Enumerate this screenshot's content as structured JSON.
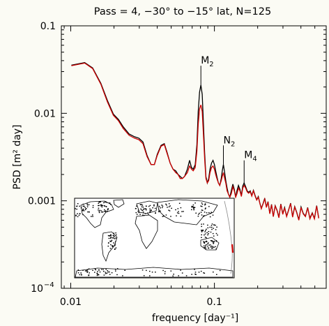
{
  "colors": {
    "background": "#fbfbf4",
    "series_black": "#000000",
    "series_red": "#cc0000",
    "inset_track": "#888888",
    "inset_highlight": "#cc0000"
  },
  "chart_data": {
    "type": "line",
    "title": "Pass = 4, −30° to −15° lat, N=125",
    "xlabel": "frequency [day⁻¹]",
    "ylabel": "PSD [m² day]",
    "xscale": "log",
    "yscale": "log",
    "xlim": [
      0.0086,
      0.6
    ],
    "ylim": [
      0.0001,
      0.1
    ],
    "xticks": [
      {
        "value": 0.01,
        "label": "0.01"
      },
      {
        "value": 0.1,
        "label": "0.1"
      }
    ],
    "yticks": [
      {
        "value": 0.0001,
        "label": "10",
        "exp": "−4"
      },
      {
        "value": 0.001,
        "label": "0.001"
      },
      {
        "value": 0.01,
        "label": "0.01"
      },
      {
        "value": 0.1,
        "label": "0.1"
      }
    ],
    "annotations": [
      {
        "base": "M",
        "sub": "2",
        "x": 0.0805,
        "y_tip": 0.021,
        "y_top": 0.035
      },
      {
        "base": "N",
        "sub": "2",
        "x": 0.1155,
        "y_tip": 0.0026,
        "y_top": 0.0043
      },
      {
        "base": "M",
        "sub": "4",
        "x": 0.161,
        "y_tip": 0.0016,
        "y_top": 0.0029
      }
    ],
    "series": [
      {
        "color_key": "series_black",
        "points": [
          [
            0.0101,
            0.0355
          ],
          [
            0.0125,
            0.038
          ],
          [
            0.0142,
            0.033
          ],
          [
            0.0162,
            0.022
          ],
          [
            0.018,
            0.014
          ],
          [
            0.0198,
            0.0098
          ],
          [
            0.0215,
            0.0085
          ],
          [
            0.0232,
            0.007
          ],
          [
            0.0255,
            0.0058
          ],
          [
            0.0278,
            0.0054
          ],
          [
            0.0298,
            0.0052
          ],
          [
            0.0318,
            0.0047
          ],
          [
            0.034,
            0.0033
          ],
          [
            0.0362,
            0.0026
          ],
          [
            0.0382,
            0.0026
          ],
          [
            0.04,
            0.0034
          ],
          [
            0.0425,
            0.0043
          ],
          [
            0.0448,
            0.0045
          ],
          [
            0.0468,
            0.0036
          ],
          [
            0.0492,
            0.0027
          ],
          [
            0.0515,
            0.0023
          ],
          [
            0.0538,
            0.0022
          ],
          [
            0.0558,
            0.002
          ],
          [
            0.0578,
            0.0019
          ],
          [
            0.0598,
            0.0018
          ],
          [
            0.062,
            0.0019
          ],
          [
            0.0648,
            0.0023
          ],
          [
            0.0672,
            0.0029
          ],
          [
            0.0692,
            0.0024
          ],
          [
            0.0712,
            0.0023
          ],
          [
            0.0735,
            0.0026
          ],
          [
            0.0755,
            0.0044
          ],
          [
            0.0772,
            0.0105
          ],
          [
            0.0788,
            0.0175
          ],
          [
            0.0805,
            0.021
          ],
          [
            0.0822,
            0.0165
          ],
          [
            0.0838,
            0.0078
          ],
          [
            0.0855,
            0.0035
          ],
          [
            0.0872,
            0.0019
          ],
          [
            0.0892,
            0.0016
          ],
          [
            0.0912,
            0.0018
          ],
          [
            0.0932,
            0.0023
          ],
          [
            0.0955,
            0.0027
          ],
          [
            0.0978,
            0.0029
          ],
          [
            0.1,
            0.0026
          ],
          [
            0.102,
            0.0022
          ],
          [
            0.104,
            0.0019
          ],
          [
            0.1065,
            0.0016
          ],
          [
            0.109,
            0.0015
          ],
          [
            0.1115,
            0.0018
          ],
          [
            0.1135,
            0.0022
          ],
          [
            0.1155,
            0.0026
          ],
          [
            0.1178,
            0.0021
          ],
          [
            0.12,
            0.0017
          ],
          [
            0.1225,
            0.0014
          ],
          [
            0.125,
            0.0012
          ],
          [
            0.128,
            0.0011
          ],
          [
            0.131,
            0.0013
          ],
          [
            0.1345,
            0.00155
          ],
          [
            0.1375,
            0.00135
          ],
          [
            0.1405,
            0.0011
          ],
          [
            0.1435,
            0.0013
          ],
          [
            0.147,
            0.0015
          ],
          [
            0.1505,
            0.00135
          ],
          [
            0.154,
            0.00115
          ],
          [
            0.1575,
            0.00148
          ],
          [
            0.161,
            0.0016
          ],
          [
            0.165,
            0.00145
          ],
          [
            0.169,
            0.0013
          ],
          [
            0.173,
            0.00125
          ],
          [
            0.1775,
            0.0013
          ],
          [
            0.182,
            0.00115
          ],
          [
            0.187,
            0.00132
          ],
          [
            0.192,
            0.00115
          ],
          [
            0.197,
            0.00103
          ],
          [
            0.202,
            0.00112
          ],
          [
            0.207,
            0.00095
          ],
          [
            0.212,
            0.00082
          ],
          [
            0.218,
            0.00093
          ],
          [
            0.224,
            0.00107
          ],
          [
            0.23,
            0.00085
          ],
          [
            0.236,
            0.00098
          ],
          [
            0.243,
            0.00072
          ],
          [
            0.25,
            0.00091
          ],
          [
            0.257,
            0.00066
          ],
          [
            0.265,
            0.00088
          ],
          [
            0.273,
            0.00078
          ],
          [
            0.281,
            0.00065
          ],
          [
            0.29,
            0.00092
          ],
          [
            0.299,
            0.00071
          ],
          [
            0.308,
            0.00084
          ],
          [
            0.318,
            0.00067
          ],
          [
            0.328,
            0.00078
          ],
          [
            0.339,
            0.00094
          ],
          [
            0.35,
            0.00066
          ],
          [
            0.362,
            0.00086
          ],
          [
            0.374,
            0.00074
          ],
          [
            0.387,
            0.00061
          ],
          [
            0.401,
            0.00085
          ],
          [
            0.415,
            0.00072
          ],
          [
            0.43,
            0.00067
          ],
          [
            0.446,
            0.00084
          ],
          [
            0.462,
            0.00063
          ],
          [
            0.48,
            0.00073
          ],
          [
            0.497,
            0.00063
          ],
          [
            0.515,
            0.00088
          ],
          [
            0.532,
            0.00064
          ]
        ]
      },
      {
        "color_key": "series_red",
        "points": [
          [
            0.0101,
            0.035
          ],
          [
            0.0125,
            0.0375
          ],
          [
            0.0142,
            0.0325
          ],
          [
            0.0162,
            0.0215
          ],
          [
            0.018,
            0.0135
          ],
          [
            0.0198,
            0.0095
          ],
          [
            0.0215,
            0.0082
          ],
          [
            0.0232,
            0.0067
          ],
          [
            0.0255,
            0.0056
          ],
          [
            0.0278,
            0.0052
          ],
          [
            0.0298,
            0.005
          ],
          [
            0.0318,
            0.0045
          ],
          [
            0.034,
            0.0032
          ],
          [
            0.0362,
            0.0026
          ],
          [
            0.0382,
            0.0026
          ],
          [
            0.04,
            0.0033
          ],
          [
            0.0425,
            0.0042
          ],
          [
            0.0448,
            0.0044
          ],
          [
            0.0468,
            0.0035
          ],
          [
            0.0492,
            0.0027
          ],
          [
            0.0515,
            0.0023
          ],
          [
            0.0538,
            0.0021
          ],
          [
            0.0558,
            0.002
          ],
          [
            0.0578,
            0.0018
          ],
          [
            0.0598,
            0.0018
          ],
          [
            0.062,
            0.0019
          ],
          [
            0.0648,
            0.0021
          ],
          [
            0.0672,
            0.0025
          ],
          [
            0.0692,
            0.0023
          ],
          [
            0.0712,
            0.0022
          ],
          [
            0.0735,
            0.0024
          ],
          [
            0.0755,
            0.0037
          ],
          [
            0.0772,
            0.0075
          ],
          [
            0.0788,
            0.0112
          ],
          [
            0.0805,
            0.0125
          ],
          [
            0.0822,
            0.0105
          ],
          [
            0.0838,
            0.0058
          ],
          [
            0.0855,
            0.003
          ],
          [
            0.0872,
            0.0018
          ],
          [
            0.0892,
            0.0016
          ],
          [
            0.0912,
            0.0017
          ],
          [
            0.0932,
            0.0021
          ],
          [
            0.0955,
            0.0024
          ],
          [
            0.0978,
            0.0025
          ],
          [
            0.1,
            0.0023
          ],
          [
            0.102,
            0.002
          ],
          [
            0.104,
            0.0018
          ],
          [
            0.1065,
            0.0016
          ],
          [
            0.109,
            0.0015
          ],
          [
            0.1115,
            0.0017
          ],
          [
            0.1135,
            0.0019
          ],
          [
            0.1155,
            0.0021
          ],
          [
            0.1178,
            0.0018
          ],
          [
            0.12,
            0.0016
          ],
          [
            0.1225,
            0.0013
          ],
          [
            0.125,
            0.0012
          ],
          [
            0.128,
            0.0011
          ],
          [
            0.131,
            0.0012
          ],
          [
            0.1345,
            0.00145
          ],
          [
            0.1375,
            0.0013
          ],
          [
            0.1405,
            0.0011
          ],
          [
            0.1435,
            0.0012
          ],
          [
            0.147,
            0.0014
          ],
          [
            0.1505,
            0.0013
          ],
          [
            0.154,
            0.00112
          ],
          [
            0.1575,
            0.0014
          ],
          [
            0.161,
            0.0015
          ],
          [
            0.165,
            0.0014
          ],
          [
            0.169,
            0.00127
          ],
          [
            0.173,
            0.00122
          ],
          [
            0.1775,
            0.00127
          ],
          [
            0.182,
            0.00113
          ],
          [
            0.187,
            0.0013
          ],
          [
            0.192,
            0.00113
          ],
          [
            0.197,
            0.00102
          ],
          [
            0.202,
            0.0011
          ],
          [
            0.207,
            0.00094
          ],
          [
            0.212,
            0.00081
          ],
          [
            0.218,
            0.00092
          ],
          [
            0.224,
            0.00105
          ],
          [
            0.23,
            0.00084
          ],
          [
            0.236,
            0.00097
          ],
          [
            0.243,
            0.00071
          ],
          [
            0.25,
            0.0009
          ],
          [
            0.257,
            0.00066
          ],
          [
            0.265,
            0.00087
          ],
          [
            0.273,
            0.00077
          ],
          [
            0.281,
            0.00064
          ],
          [
            0.29,
            0.00091
          ],
          [
            0.299,
            0.0007
          ],
          [
            0.308,
            0.00083
          ],
          [
            0.318,
            0.00066
          ],
          [
            0.328,
            0.00077
          ],
          [
            0.339,
            0.00093
          ],
          [
            0.35,
            0.00065
          ],
          [
            0.362,
            0.00085
          ],
          [
            0.374,
            0.00073
          ],
          [
            0.387,
            0.0006
          ],
          [
            0.401,
            0.00084
          ],
          [
            0.415,
            0.00071
          ],
          [
            0.43,
            0.00066
          ],
          [
            0.446,
            0.00083
          ],
          [
            0.462,
            0.00062
          ],
          [
            0.48,
            0.00072
          ],
          [
            0.497,
            0.00062
          ],
          [
            0.515,
            0.00087
          ],
          [
            0.532,
            0.00063
          ]
        ]
      }
    ]
  }
}
